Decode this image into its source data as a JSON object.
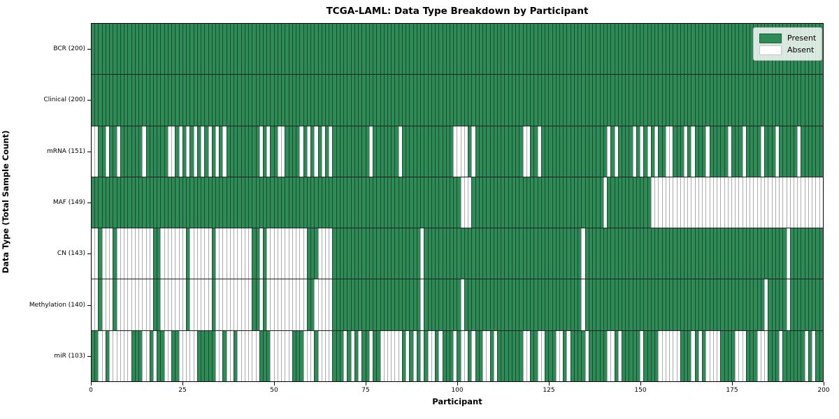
{
  "chart_data": {
    "type": "heatmap",
    "title": "TCGA-LAML: Data Type Breakdown by Participant",
    "xlabel": "Participant",
    "ylabel": "Data Type (Total Sample Count)",
    "x_ticks": [
      0,
      25,
      50,
      75,
      100,
      125,
      150,
      175,
      200
    ],
    "xlim": [
      0,
      200
    ],
    "n_participants": 200,
    "grid": false,
    "legend_position": "upper right",
    "legend_entries": [
      {
        "label": "Present",
        "color": "#2e8b57"
      },
      {
        "label": "Absent",
        "color": "#ffffff"
      }
    ],
    "colors": {
      "present": "#2e8b57",
      "absent": "#ffffff"
    },
    "rows": [
      {
        "label": "BCR (200)",
        "data_type": "BCR",
        "present_count": 200,
        "absent_participants": []
      },
      {
        "label": "Clinical (200)",
        "data_type": "Clinical",
        "present_count": 200,
        "absent_participants": []
      },
      {
        "label": "mRNA (151)",
        "data_type": "mRNA",
        "present_count": 151,
        "absent_participants": [
          0,
          1,
          4,
          7,
          14,
          21,
          22,
          24,
          26,
          28,
          30,
          32,
          34,
          36,
          46,
          48,
          51,
          52,
          57,
          59,
          61,
          63,
          65,
          76,
          84,
          99,
          100,
          101,
          102,
          104,
          118,
          119,
          122,
          141,
          143,
          148,
          150,
          152,
          154,
          157,
          158,
          162,
          164,
          168,
          174,
          178,
          183,
          187,
          193
        ]
      },
      {
        "label": "MAF (149)",
        "data_type": "MAF",
        "present_count": 149,
        "absent_participants": [
          101,
          102,
          103,
          140,
          153,
          154,
          155,
          156,
          157,
          158,
          159,
          160,
          161,
          162,
          163,
          164,
          165,
          166,
          167,
          168,
          169,
          170,
          171,
          172,
          173,
          174,
          175,
          176,
          177,
          178,
          179,
          180,
          181,
          182,
          183,
          184,
          185,
          186,
          187,
          188,
          189,
          190,
          191,
          192,
          193,
          194,
          195,
          196,
          197,
          198,
          199
        ]
      },
      {
        "label": "CN (143)",
        "data_type": "CN",
        "present_count": 143,
        "absent_participants": [
          0,
          1,
          3,
          4,
          5,
          7,
          8,
          9,
          10,
          11,
          12,
          13,
          14,
          15,
          16,
          19,
          20,
          21,
          22,
          23,
          24,
          25,
          27,
          28,
          29,
          30,
          31,
          32,
          34,
          35,
          36,
          37,
          38,
          39,
          40,
          41,
          42,
          43,
          46,
          48,
          49,
          50,
          51,
          52,
          53,
          54,
          55,
          56,
          57,
          58,
          62,
          63,
          64,
          65,
          90,
          134,
          190
        ]
      },
      {
        "label": "Methylation (140)",
        "data_type": "Methylation",
        "present_count": 140,
        "absent_participants": [
          0,
          1,
          3,
          4,
          5,
          7,
          8,
          9,
          10,
          11,
          12,
          13,
          14,
          15,
          16,
          19,
          20,
          21,
          22,
          23,
          24,
          25,
          27,
          28,
          29,
          30,
          31,
          32,
          34,
          35,
          36,
          37,
          38,
          39,
          40,
          41,
          42,
          43,
          46,
          48,
          49,
          50,
          51,
          52,
          53,
          54,
          55,
          56,
          57,
          58,
          61,
          62,
          63,
          64,
          65,
          90,
          101,
          134,
          184,
          190
        ]
      },
      {
        "label": "miR (103)",
        "data_type": "miR",
        "present_count": 103,
        "absent_participants": [
          2,
          3,
          5,
          6,
          7,
          8,
          9,
          10,
          14,
          15,
          17,
          20,
          21,
          24,
          25,
          26,
          27,
          28,
          34,
          35,
          37,
          38,
          40,
          41,
          42,
          43,
          44,
          45,
          49,
          50,
          51,
          52,
          53,
          54,
          58,
          59,
          60,
          62,
          63,
          64,
          65,
          69,
          71,
          73,
          76,
          79,
          80,
          81,
          82,
          83,
          84,
          86,
          88,
          90,
          92,
          93,
          95,
          99,
          101,
          102,
          104,
          107,
          108,
          110,
          118,
          119,
          122,
          123,
          127,
          128,
          130,
          135,
          141,
          142,
          144,
          150,
          155,
          156,
          157,
          158,
          159,
          160,
          164,
          166,
          168,
          169,
          170,
          171,
          176,
          177,
          178,
          182,
          183,
          184,
          188,
          195,
          197
        ]
      }
    ]
  }
}
